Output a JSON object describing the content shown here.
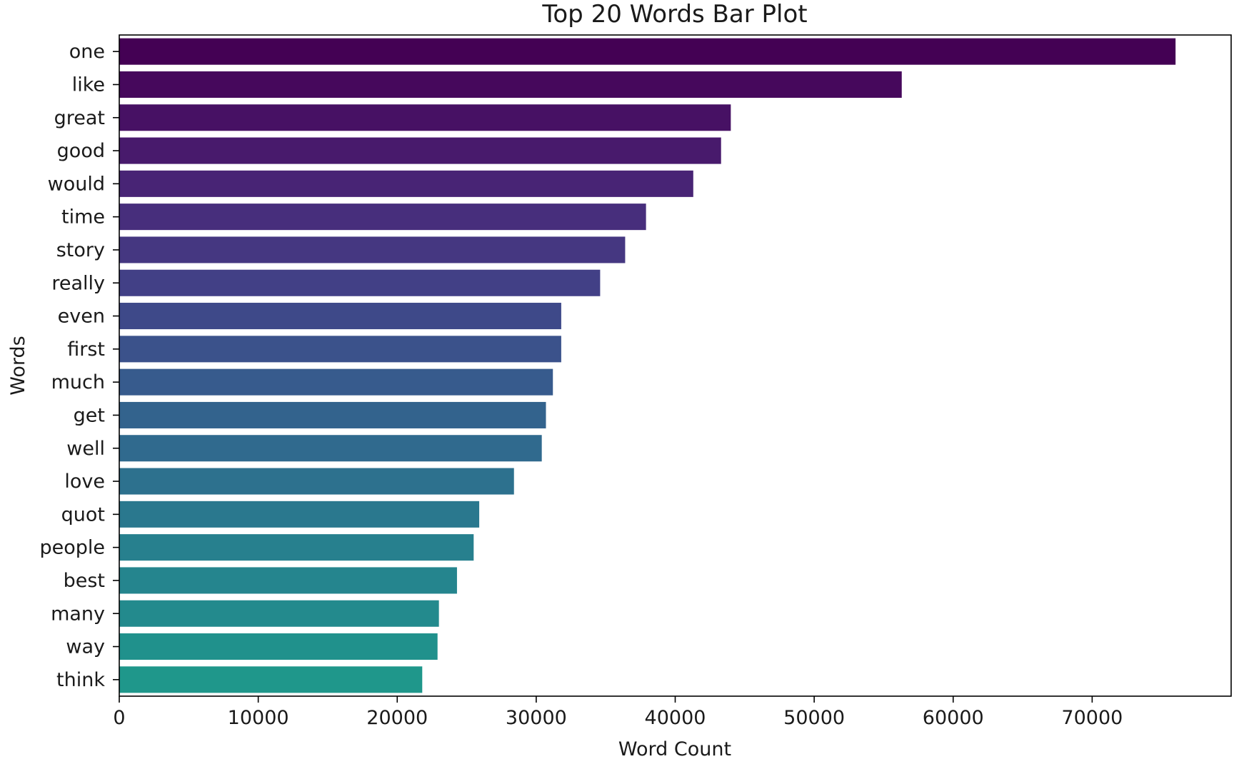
{
  "chart_data": {
    "type": "bar",
    "orientation": "horizontal",
    "title": "Top 20 Words Bar Plot",
    "xlabel": "Word Count",
    "ylabel": "Words",
    "xlim": [
      0,
      80000
    ],
    "xticks": [
      0,
      10000,
      20000,
      30000,
      40000,
      50000,
      60000,
      70000
    ],
    "grid": false,
    "legend": "none",
    "palette": "viridis",
    "categories": [
      "one",
      "like",
      "great",
      "good",
      "would",
      "time",
      "story",
      "really",
      "even",
      "first",
      "much",
      "get",
      "well",
      "love",
      "quot",
      "people",
      "best",
      "many",
      "way",
      "think"
    ],
    "values": [
      76000,
      56300,
      44000,
      43300,
      41300,
      37900,
      36400,
      34600,
      31800,
      31800,
      31200,
      30700,
      30400,
      28400,
      25900,
      25500,
      24300,
      23000,
      22900,
      21800
    ],
    "colors": [
      "#440154",
      "#46085c",
      "#471164",
      "#481a6c",
      "#482475",
      "#472e7c",
      "#453781",
      "#424086",
      "#3e4989",
      "#3b528b",
      "#375b8d",
      "#33638d",
      "#306a8e",
      "#2d718e",
      "#2a788e",
      "#27808e",
      "#25858e",
      "#238a8d",
      "#20918c",
      "#1f978b"
    ]
  }
}
